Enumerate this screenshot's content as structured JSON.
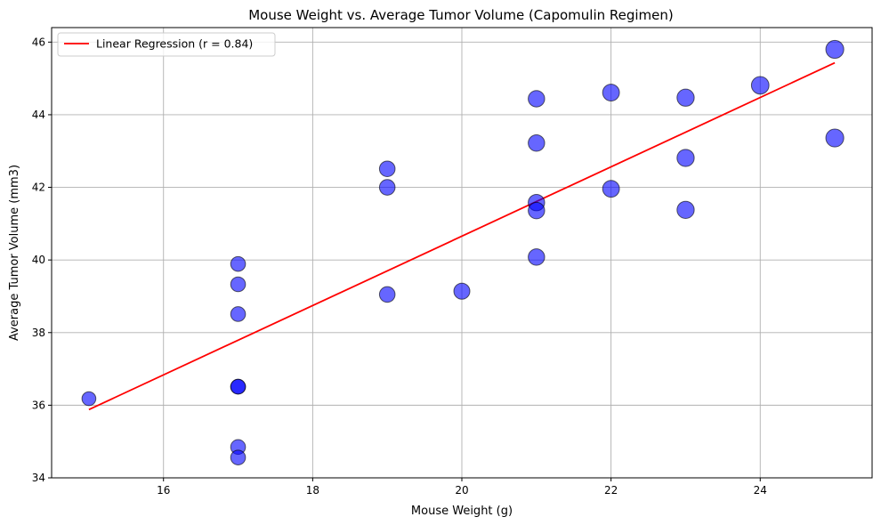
{
  "chart_data": {
    "type": "scatter",
    "title": "Mouse Weight vs. Average Tumor Volume (Capomulin Regimen)",
    "xlabel": "Mouse Weight (g)",
    "ylabel": "Average Tumor Volume (mm3)",
    "xlim": [
      14.5,
      25.5
    ],
    "ylim": [
      34,
      46.4
    ],
    "xticks": [
      16,
      18,
      20,
      22,
      24
    ],
    "yticks": [
      34,
      36,
      38,
      40,
      42,
      44,
      46
    ],
    "grid": true,
    "legend_position": "top-left",
    "marker_color": "#0000ff",
    "marker_edge_color": "#000000",
    "points": [
      {
        "x": 15,
        "y": 36.18
      },
      {
        "x": 17,
        "y": 39.89
      },
      {
        "x": 17,
        "y": 39.33
      },
      {
        "x": 17,
        "y": 38.51
      },
      {
        "x": 17,
        "y": 36.51
      },
      {
        "x": 17,
        "y": 36.51
      },
      {
        "x": 17,
        "y": 34.85
      },
      {
        "x": 17,
        "y": 34.56
      },
      {
        "x": 19,
        "y": 42.51
      },
      {
        "x": 19,
        "y": 42.0
      },
      {
        "x": 19,
        "y": 39.05
      },
      {
        "x": 20,
        "y": 39.14
      },
      {
        "x": 21,
        "y": 44.44
      },
      {
        "x": 21,
        "y": 43.22
      },
      {
        "x": 21,
        "y": 41.58
      },
      {
        "x": 21,
        "y": 41.36
      },
      {
        "x": 21,
        "y": 40.08
      },
      {
        "x": 22,
        "y": 44.61
      },
      {
        "x": 22,
        "y": 41.96
      },
      {
        "x": 23,
        "y": 44.47
      },
      {
        "x": 23,
        "y": 42.81
      },
      {
        "x": 23,
        "y": 41.38
      },
      {
        "x": 24,
        "y": 44.81
      },
      {
        "x": 25,
        "y": 45.8
      },
      {
        "x": 25,
        "y": 43.36
      }
    ],
    "series": [
      {
        "name": "Linear Regression (r = 0.84)",
        "type": "line",
        "color": "#ff0000",
        "x": [
          15,
          25
        ],
        "y": [
          35.88,
          45.43
        ]
      }
    ]
  }
}
